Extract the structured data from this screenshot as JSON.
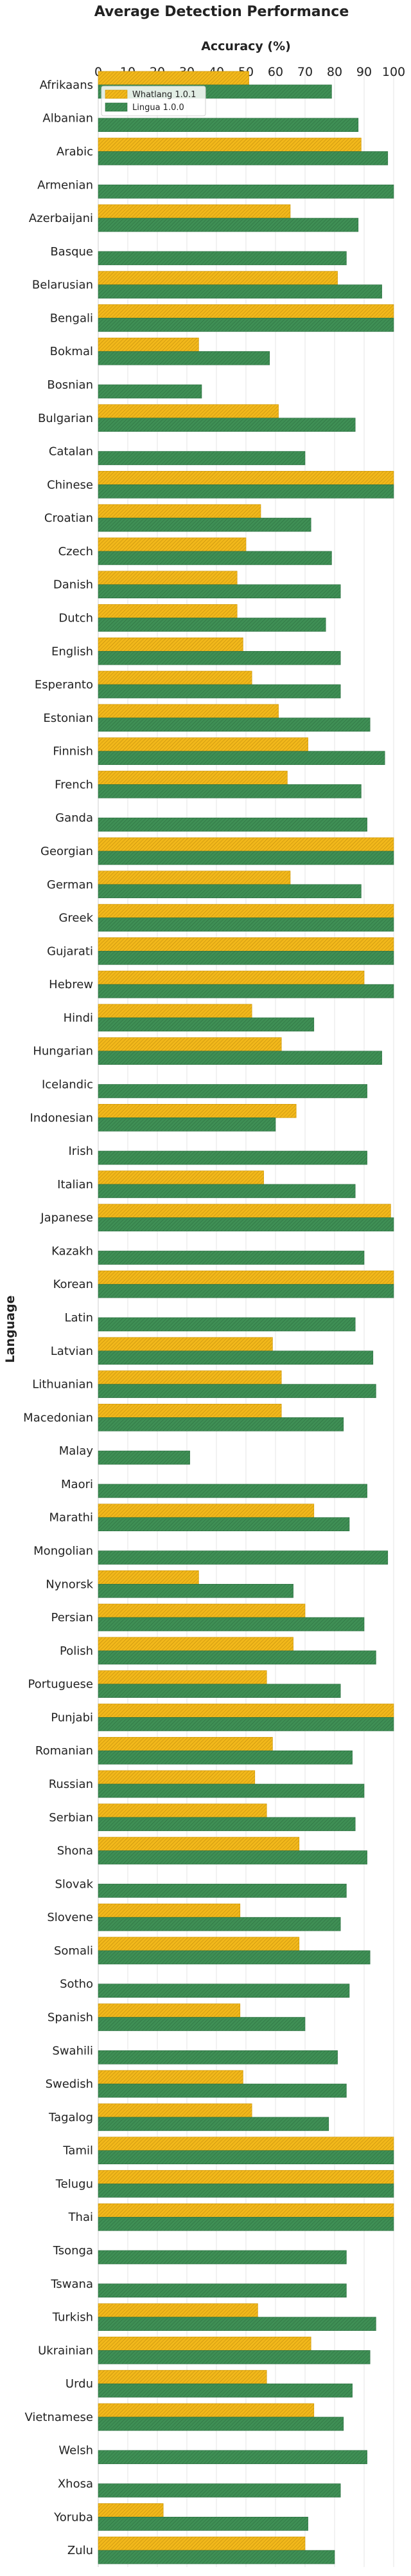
{
  "chart_data": {
    "type": "bar",
    "orientation": "horizontal",
    "title": "Average Detection Performance",
    "xlabel": "Accuracy (%)",
    "ylabel": "Language",
    "xlim": [
      0,
      100
    ],
    "x_ticks": [
      0,
      10,
      20,
      30,
      40,
      50,
      60,
      70,
      80,
      90,
      100
    ],
    "x_axis_position": "top",
    "grid": true,
    "legend_position": "top-left",
    "categories": [
      "Afrikaans",
      "Albanian",
      "Arabic",
      "Armenian",
      "Azerbaijani",
      "Basque",
      "Belarusian",
      "Bengali",
      "Bokmal",
      "Bosnian",
      "Bulgarian",
      "Catalan",
      "Chinese",
      "Croatian",
      "Czech",
      "Danish",
      "Dutch",
      "English",
      "Esperanto",
      "Estonian",
      "Finnish",
      "French",
      "Ganda",
      "Georgian",
      "German",
      "Greek",
      "Gujarati",
      "Hebrew",
      "Hindi",
      "Hungarian",
      "Icelandic",
      "Indonesian",
      "Irish",
      "Italian",
      "Japanese",
      "Kazakh",
      "Korean",
      "Latin",
      "Latvian",
      "Lithuanian",
      "Macedonian",
      "Malay",
      "Maori",
      "Marathi",
      "Mongolian",
      "Nynorsk",
      "Persian",
      "Polish",
      "Portuguese",
      "Punjabi",
      "Romanian",
      "Russian",
      "Serbian",
      "Shona",
      "Slovak",
      "Slovene",
      "Somali",
      "Sotho",
      "Spanish",
      "Swahili",
      "Swedish",
      "Tagalog",
      "Tamil",
      "Telugu",
      "Thai",
      "Tsonga",
      "Tswana",
      "Turkish",
      "Ukrainian",
      "Urdu",
      "Vietnamese",
      "Welsh",
      "Xhosa",
      "Yoruba",
      "Zulu"
    ],
    "series": [
      {
        "name": "Whatlang 1.0.1",
        "color": "#f2b81b",
        "values": [
          51,
          null,
          89,
          null,
          65,
          null,
          81,
          100,
          34,
          null,
          61,
          null,
          100,
          55,
          50,
          47,
          47,
          49,
          52,
          61,
          71,
          64,
          null,
          100,
          65,
          100,
          100,
          90,
          52,
          62,
          null,
          67,
          null,
          56,
          99,
          null,
          100,
          null,
          59,
          62,
          62,
          null,
          null,
          73,
          null,
          34,
          70,
          66,
          57,
          100,
          59,
          53,
          57,
          68,
          null,
          48,
          68,
          null,
          48,
          null,
          49,
          52,
          100,
          100,
          100,
          null,
          null,
          54,
          72,
          57,
          73,
          null,
          null,
          22,
          70
        ]
      },
      {
        "name": "Lingua 1.0.0",
        "color": "#3f8f55",
        "values": [
          79,
          88,
          98,
          100,
          88,
          84,
          96,
          100,
          58,
          35,
          87,
          70,
          100,
          72,
          79,
          82,
          77,
          82,
          82,
          92,
          97,
          89,
          91,
          100,
          89,
          100,
          100,
          100,
          73,
          96,
          91,
          60,
          91,
          87,
          100,
          90,
          100,
          87,
          93,
          94,
          83,
          31,
          91,
          85,
          98,
          66,
          90,
          94,
          82,
          100,
          86,
          90,
          87,
          91,
          84,
          82,
          92,
          85,
          70,
          81,
          84,
          78,
          100,
          100,
          100,
          84,
          84,
          94,
          92,
          86,
          83,
          91,
          82,
          71,
          80
        ]
      }
    ]
  }
}
